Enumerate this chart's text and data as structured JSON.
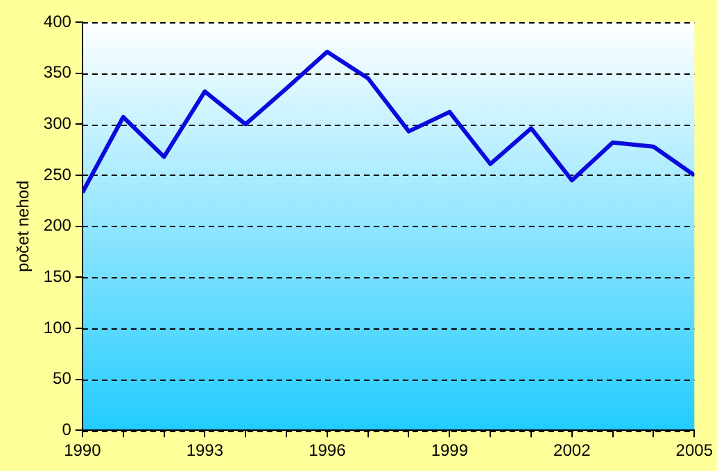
{
  "chart_data": {
    "type": "line",
    "ylabel": "počet nehod",
    "x": [
      1990,
      1991,
      1992,
      1993,
      1994,
      1995,
      1996,
      1997,
      1998,
      1999,
      2000,
      2001,
      2002,
      2003,
      2004,
      2005
    ],
    "series": [
      {
        "color": "#0a0adc",
        "values": [
          233,
          307,
          268,
          332,
          300,
          335,
          371,
          345,
          293,
          312,
          261,
          296,
          245,
          282,
          278,
          250
        ]
      }
    ],
    "xlim": [
      1990,
      2005
    ],
    "xticks": [
      1990,
      {
        "value": 1991,
        "label": null
      },
      {
        "value": 1992,
        "label": null
      },
      1993,
      {
        "value": 1994,
        "label": null
      },
      {
        "value": 1995,
        "label": null
      },
      1996,
      {
        "value": 1997,
        "label": null
      },
      {
        "value": 1998,
        "label": null
      },
      1999,
      {
        "value": 2000,
        "label": null
      },
      {
        "value": 2001,
        "label": null
      },
      2002,
      {
        "value": 2003,
        "label": null
      },
      {
        "value": 2004,
        "label": null
      },
      2005
    ],
    "ylim": [
      0,
      400
    ],
    "yticks": [
      0,
      50,
      100,
      150,
      200,
      250,
      300,
      350,
      400
    ],
    "grid": "y",
    "legend": false,
    "marker": "none",
    "line_style": "solid"
  }
}
